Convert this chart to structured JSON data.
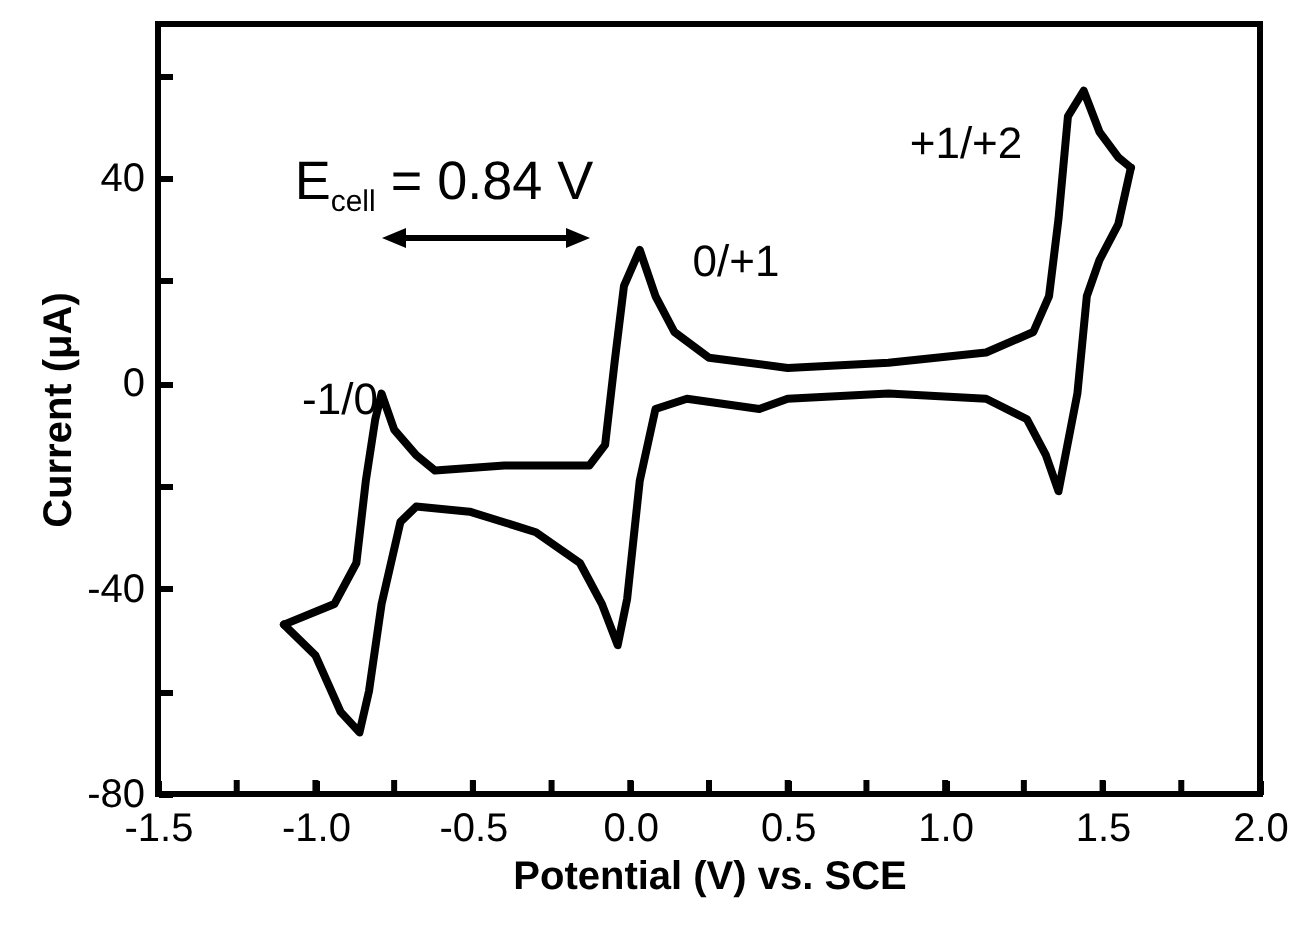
{
  "chart_data": {
    "type": "line",
    "xlabel": "Potential (V) vs. SCE",
    "ylabel": "Current (μA)",
    "xlim": [
      -1.5,
      2.0
    ],
    "ylim": [
      -80,
      70
    ],
    "xticks": [
      -1.5,
      {
        "value": -1.25,
        "label": null
      },
      {
        "value": -1,
        "label": "-1.0"
      },
      {
        "value": -0.75,
        "label": null
      },
      -0.5,
      {
        "value": -0.25,
        "label": null
      },
      {
        "value": 0,
        "label": "0.0"
      },
      {
        "value": 0.25,
        "label": null
      },
      0.5,
      {
        "value": 0.75,
        "label": null
      },
      {
        "value": 1,
        "label": "1.0"
      },
      {
        "value": 1.25,
        "label": null
      },
      1.5,
      {
        "value": 1.75,
        "label": null
      },
      {
        "value": 2,
        "label": "2.0"
      }
    ],
    "yticks": [
      -80,
      {
        "value": -60,
        "label": null
      },
      -40,
      {
        "value": -20,
        "label": null
      },
      0,
      {
        "value": 20,
        "label": null
      },
      40,
      {
        "value": 60,
        "label": null
      }
    ],
    "series": [
      {
        "color": "#000000",
        "x": [
          -1.1,
          -0.94,
          -0.87,
          -0.84,
          -0.81,
          -0.79,
          -0.75,
          -0.68,
          -0.62,
          -0.4,
          -0.13,
          -0.08,
          -0.05,
          -0.02,
          0.03,
          0.08,
          0.14,
          0.25,
          0.5,
          0.82,
          1.13,
          1.28,
          1.33,
          1.36,
          1.39,
          1.44,
          1.49,
          1.55,
          1.59
        ],
        "values": [
          -47,
          -43,
          -35,
          -19,
          -7,
          -2,
          -9,
          -14,
          -17,
          -16,
          -16,
          -12,
          4,
          19,
          26,
          17,
          10,
          5,
          3,
          4,
          6,
          10,
          17,
          32,
          52,
          57,
          49,
          44,
          42
        ]
      },
      {
        "color": "#000000",
        "x": [
          1.59,
          1.55,
          1.49,
          1.45,
          1.42,
          1.36,
          1.32,
          1.26,
          1.13,
          0.82,
          0.5,
          0.41,
          0.18,
          0.08,
          0.03,
          -0.01,
          -0.04,
          -0.09,
          -0.16,
          -0.3,
          -0.51,
          -0.68,
          -0.73,
          -0.79,
          -0.83,
          -0.86,
          -0.92,
          -1.0,
          -1.1
        ],
        "values": [
          42,
          31,
          24,
          17,
          -2,
          -21,
          -14,
          -7,
          -3,
          -2,
          -3,
          -5,
          -3,
          -5,
          -19,
          -42,
          -51,
          -43,
          -35,
          -29,
          -25,
          -24,
          -27,
          -43,
          -60,
          -68,
          -64,
          -53,
          -47
        ]
      }
    ],
    "annotations": [
      "E$_{cell}$ = 0.84 V",
      "-1/0",
      "0/+1",
      "+1/+2"
    ]
  }
}
